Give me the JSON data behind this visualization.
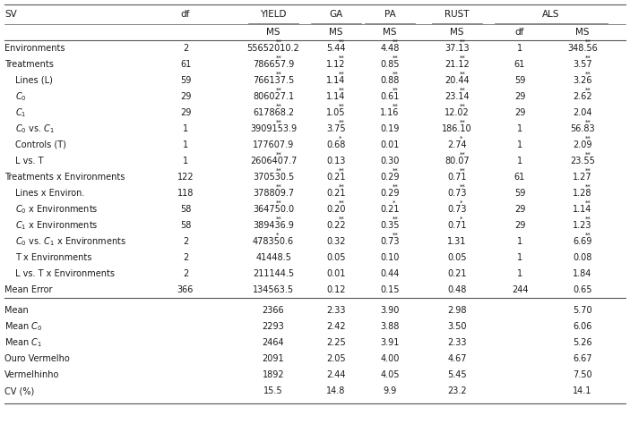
{
  "rows": [
    [
      "Environments",
      "2",
      "55652010.2**",
      "5.44**",
      "4.48**",
      "37.13**",
      "1",
      "348.56**"
    ],
    [
      "Treatments",
      "61",
      "786657.9**",
      "1.12**",
      "0.85**",
      "21.12**",
      "61",
      "3.57**"
    ],
    [
      "  Lines (L)",
      "59",
      "766137.5**",
      "1.14**",
      "0.88**",
      "20.44**",
      "59",
      "3.26**"
    ],
    [
      "  C_0",
      "29",
      "806027.1**",
      "1.14**",
      "0.61**",
      "23.14**",
      "29",
      "2.62**"
    ],
    [
      "  C_1",
      "29",
      "617868.2**",
      "1.05**",
      "1.16**",
      "12.02**",
      "29",
      "2.04"
    ],
    [
      "  C_0 vs. C_1",
      "1",
      "3909153.9**",
      "3.75**",
      "0.19",
      "186.10**",
      "1",
      "56.83**"
    ],
    [
      "  Controls (T)",
      "1",
      "177607.9",
      "0.68*",
      "0.01",
      "2.74*",
      "1",
      "2.09**"
    ],
    [
      "  L vs. T",
      "1",
      "2606407.7**",
      "0.13",
      "0.30",
      "80.07**",
      "1",
      "23.55**"
    ],
    [
      "Treatments x Environments",
      "122",
      "370530.5**",
      "0.21**",
      "0.29**",
      "0.71**",
      "61",
      "1.27**"
    ],
    [
      "  Lines x Environ.",
      "118",
      "378809.7**",
      "0.21**",
      "0.29**",
      "0.73**",
      "59",
      "1.28**"
    ],
    [
      "  C_0 x Environments",
      "58",
      "364750.0**",
      "0.20**",
      "0.21*",
      "0.73*",
      "29",
      "1.14**"
    ],
    [
      "  C_1 x Environments",
      "58",
      "389436.9**",
      "0.22**",
      "0.35**",
      "0.71*",
      "29",
      "1.23**"
    ],
    [
      "  C_0 vs. C_1 x Environments",
      "2",
      "478350.6*",
      "0.32",
      "0.73**",
      "1.31",
      "1",
      "6.69**"
    ],
    [
      "  T x Environments",
      "2",
      "41448.5",
      "0.05",
      "0.10",
      "0.05",
      "1",
      "0.08"
    ],
    [
      "  L vs. T x Environments",
      "2",
      "211144.5",
      "0.01",
      "0.44",
      "0.21",
      "1",
      "1.84"
    ],
    [
      "Mean Error",
      "366",
      "134563.5",
      "0.12",
      "0.15",
      "0.48",
      "244",
      "0.65"
    ]
  ],
  "bottom_rows": [
    [
      "Mean",
      "",
      "2366",
      "2.33",
      "3.90",
      "2.98",
      "",
      "5.70"
    ],
    [
      "Mean C_0",
      "",
      "2293",
      "2.42",
      "3.88",
      "3.50",
      "",
      "6.06"
    ],
    [
      "Mean C_1",
      "",
      "2464",
      "2.25",
      "3.91",
      "2.33",
      "",
      "5.26"
    ],
    [
      "Ouro Vermelho",
      "",
      "2091",
      "2.05",
      "4.00",
      "4.67",
      "",
      "6.67"
    ],
    [
      "Vermelhinho",
      "",
      "1892",
      "2.44",
      "4.05",
      "5.45",
      "",
      "7.50"
    ],
    [
      "CV (%)",
      "",
      "15.5",
      "14.8",
      "9.9",
      "23.2",
      "",
      "14.1"
    ]
  ],
  "font_size": 7.0,
  "header_font_size": 7.5,
  "bg_color": "#ffffff",
  "text_color": "#1a1a1a",
  "line_color": "#555555"
}
